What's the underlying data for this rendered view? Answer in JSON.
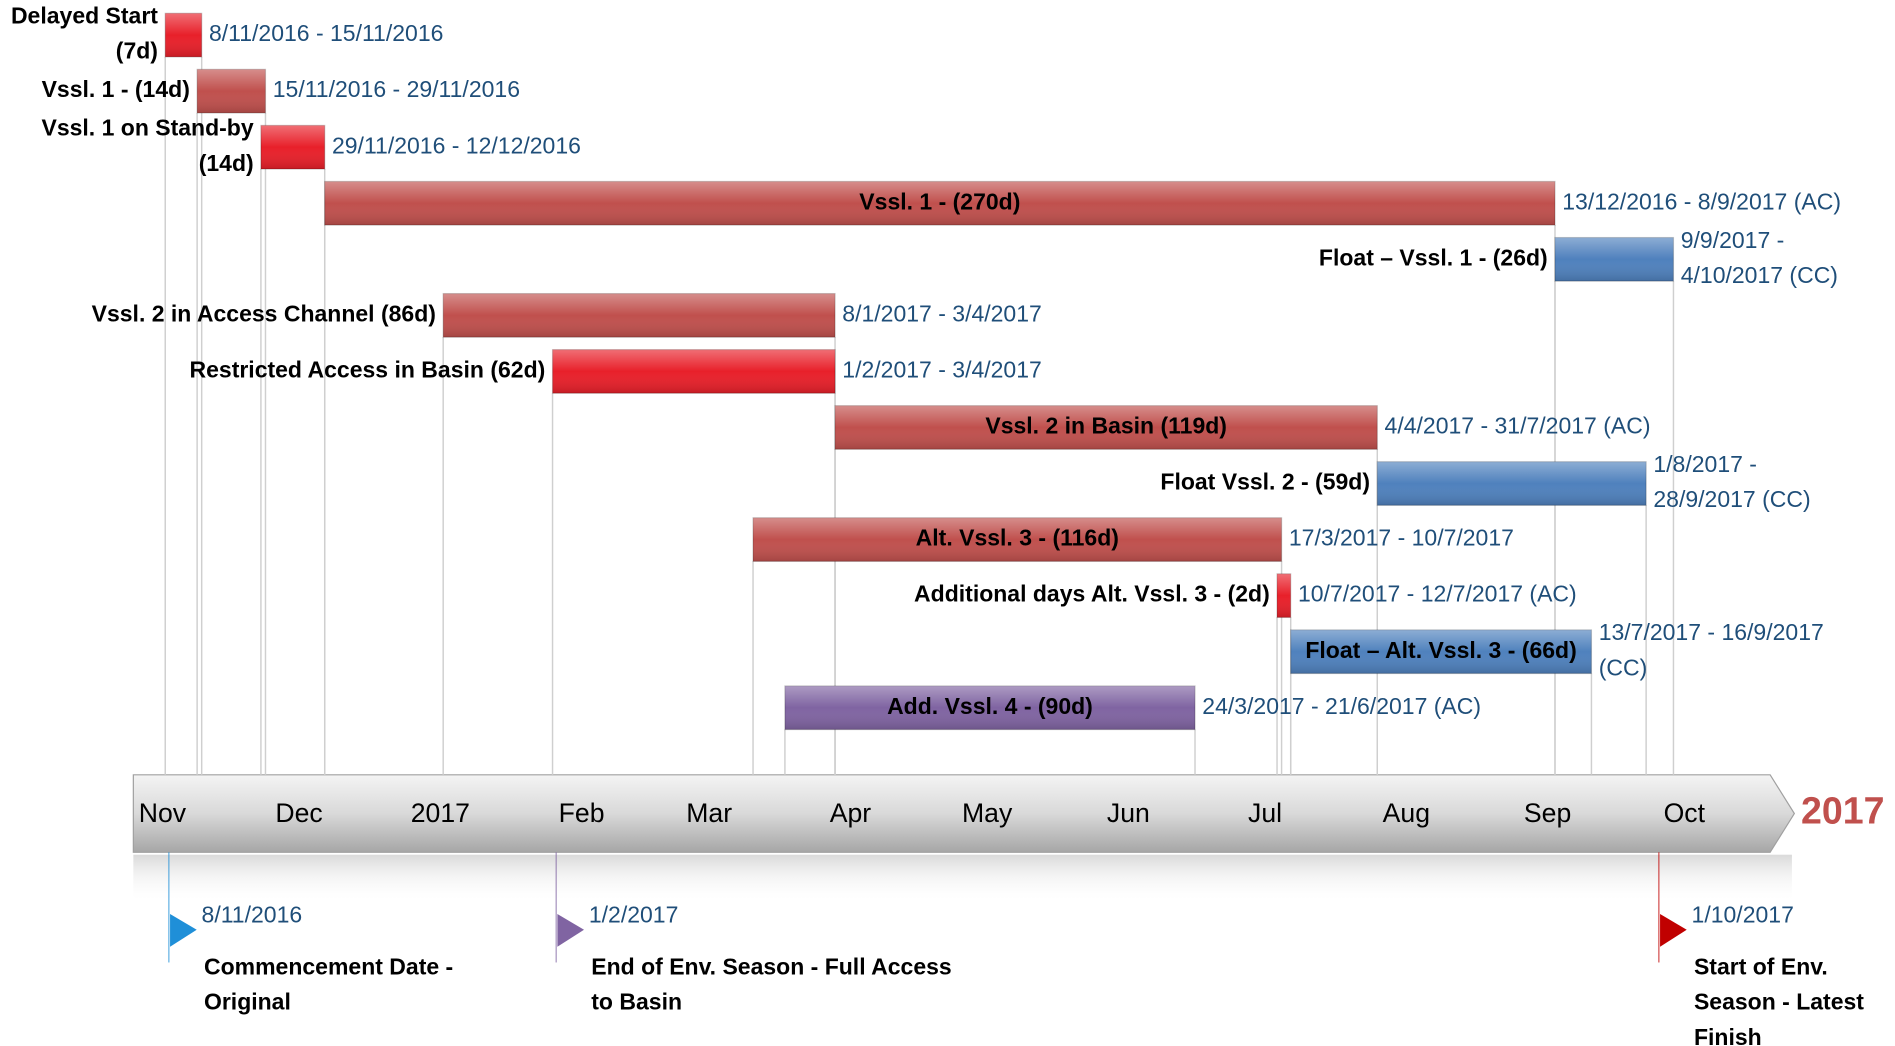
{
  "chart_data": {
    "type": "gantt",
    "xlim": [
      "1/11/2016",
      "31/10/2017"
    ],
    "xticks": [
      {
        "value": "1/11/2016",
        "label": "Nov"
      },
      {
        "value": "1/12/2016",
        "label": "Dec"
      },
      {
        "value": "1/1/2017",
        "label": "2017"
      },
      {
        "value": "1/2/2017",
        "label": "Feb"
      },
      {
        "value": "1/3/2017",
        "label": "Mar"
      },
      {
        "value": "1/4/2017",
        "label": "Apr"
      },
      {
        "value": "1/5/2017",
        "label": "May"
      },
      {
        "value": "1/6/2017",
        "label": "Jun"
      },
      {
        "value": "1/7/2017",
        "label": "Jul"
      },
      {
        "value": "1/8/2017",
        "label": "Aug"
      },
      {
        "value": "1/9/2017",
        "label": "Sep"
      },
      {
        "value": "1/10/2017",
        "label": "Oct"
      }
    ],
    "year_label": "2017",
    "tasks": [
      {
        "label": [
          "Delayed Start",
          "(7d)"
        ],
        "dates": [
          "8/11/2016 - 15/11/2016"
        ],
        "color": "#e8202a",
        "label_position": "left"
      },
      {
        "label": [
          "Vssl. 1  -  (14d)"
        ],
        "dates": [
          "15/11/2016 - 29/11/2016"
        ],
        "color": "#c0504d",
        "label_position": "left"
      },
      {
        "label": [
          "Vssl. 1 on Stand-by",
          "(14d)"
        ],
        "dates": [
          "29/11/2016 - 12/12/2016"
        ],
        "color": "#e8202a",
        "label_position": "left"
      },
      {
        "label": [
          "Vssl. 1 -  (270d)"
        ],
        "dates": [
          "13/12/2016 - 8/9/2017 (AC)"
        ],
        "color": "#c0504d",
        "label_position": "inside"
      },
      {
        "label": [
          "Float – Vssl. 1 - (26d)"
        ],
        "dates": [
          "9/9/2017 -",
          "4/10/2017 (CC)"
        ],
        "color": "#4f81bd",
        "label_position": "left"
      },
      {
        "label": [
          "Vssl. 2 in Access Channel (86d)"
        ],
        "dates": [
          "8/1/2017 - 3/4/2017"
        ],
        "color": "#c0504d",
        "label_position": "left"
      },
      {
        "label": [
          "Restricted Access in Basin (62d)"
        ],
        "dates": [
          "1/2/2017 - 3/4/2017"
        ],
        "color": "#e8202a",
        "label_position": "left"
      },
      {
        "label": [
          "Vssl. 2 in Basin (119d)"
        ],
        "dates": [
          "4/4/2017 - 31/7/2017 (AC)"
        ],
        "color": "#c0504d",
        "label_position": "inside"
      },
      {
        "label": [
          "Float Vssl. 2 - (59d)"
        ],
        "dates": [
          "1/8/2017 -",
          "28/9/2017 (CC)"
        ],
        "color": "#4f81bd",
        "label_position": "left"
      },
      {
        "label": [
          "Alt. Vssl. 3 - (116d)"
        ],
        "dates": [
          "17/3/2017 - 10/7/2017"
        ],
        "color": "#c0504d",
        "label_position": "inside"
      },
      {
        "label": [
          "Additional days Alt. Vssl. 3 -  (2d)"
        ],
        "dates": [
          "10/7/2017 - 12/7/2017 (AC)"
        ],
        "color": "#e8202a",
        "label_position": "left"
      },
      {
        "label": [
          "Float – Alt. Vssl. 3 -  (66d)"
        ],
        "dates": [
          "13/7/2017 - 16/9/2017",
          "(CC)"
        ],
        "color": "#4f81bd",
        "label_position": "inside"
      },
      {
        "label": [
          "Add. Vssl. 4 - (90d)"
        ],
        "dates": [
          "24/3/2017 - 21/6/2017 (AC)"
        ],
        "color": "#8064a2",
        "label_position": "inside"
      }
    ],
    "milestones": [
      {
        "date": "8/11/2016",
        "label": [
          "Commencement Date -",
          "Original"
        ],
        "color": "#1f8fd8"
      },
      {
        "date": "1/2/2017",
        "label": [
          "End of Env. Season - Full Access",
          "to Basin"
        ],
        "color": "#8064a2"
      },
      {
        "date": "1/10/2017",
        "label": [
          "Start of Env.",
          "Season - Latest",
          "Finish"
        ],
        "color": "#c00000"
      }
    ]
  }
}
